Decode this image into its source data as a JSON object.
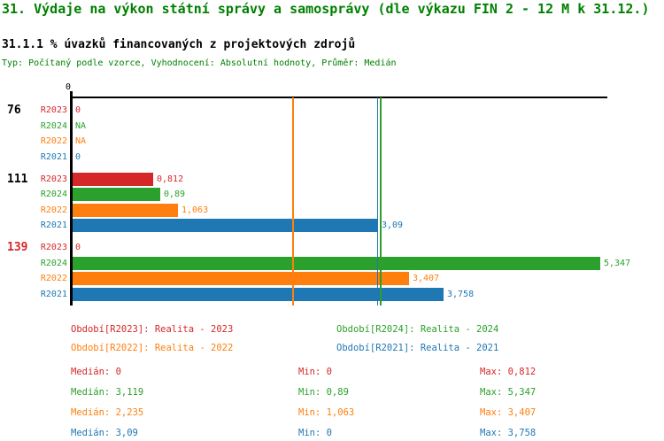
{
  "header": {
    "title": "31. Výdaje na výkon státní správy a samosprávy (dle výkazu FIN 2 - 12 M k 31.12.)",
    "subtitle": "31.1.1 % úvazků financovaných z projektových zdrojů",
    "type_line": "Typ: Počítaný podle vzorce, Vyhodnocení: Absolutní hodnoty, Průměr: Medián"
  },
  "colors": {
    "R2023": "#d62728",
    "R2024": "#2ca02c",
    "R2022": "#ff7f0e",
    "R2021": "#1f77b4",
    "title_green": "#008000",
    "group_label_black": "#000000",
    "group_label_red": "#d62728",
    "axis": "#000000"
  },
  "chart_data": {
    "type": "bar",
    "orientation": "horizontal",
    "title": "31.1.1 % úvazků financovaných z projektových zdrojů",
    "x_axis": {
      "tick_labels": [
        "0"
      ],
      "xmin": 0,
      "xmax": 5.43,
      "grid": false
    },
    "series_order": [
      "R2023",
      "R2024",
      "R2022",
      "R2021"
    ],
    "groups": [
      {
        "label": "76",
        "label_color": "#000000",
        "rows": [
          {
            "series": "R2023",
            "value": 0,
            "display": "0"
          },
          {
            "series": "R2024",
            "value": null,
            "display": "NA"
          },
          {
            "series": "R2022",
            "value": null,
            "display": "NA"
          },
          {
            "series": "R2021",
            "value": 0,
            "display": "0"
          }
        ]
      },
      {
        "label": "111",
        "label_color": "#000000",
        "rows": [
          {
            "series": "R2023",
            "value": 0.812,
            "display": "0,812"
          },
          {
            "series": "R2024",
            "value": 0.89,
            "display": "0,89"
          },
          {
            "series": "R2022",
            "value": 1.063,
            "display": "1,063"
          },
          {
            "series": "R2021",
            "value": 3.09,
            "display": "3,09"
          }
        ]
      },
      {
        "label": "139",
        "label_color": "#d62728",
        "rows": [
          {
            "series": "R2023",
            "value": 0,
            "display": "0"
          },
          {
            "series": "R2024",
            "value": 5.347,
            "display": "5,347"
          },
          {
            "series": "R2022",
            "value": 3.407,
            "display": "3,407"
          },
          {
            "series": "R2021",
            "value": 3.758,
            "display": "3,758"
          }
        ]
      }
    ],
    "median_lines": [
      {
        "series": "R2022",
        "value": 2.235
      },
      {
        "series": "R2021",
        "value": 3.09
      },
      {
        "series": "R2024",
        "value": 3.119
      }
    ]
  },
  "legend": [
    {
      "series": "R2023",
      "label": "Období[R2023]: Realita - 2023",
      "col": 0,
      "row": 0
    },
    {
      "series": "R2024",
      "label": "Období[R2024]: Realita - 2024",
      "col": 1,
      "row": 0
    },
    {
      "series": "R2022",
      "label": "Období[R2022]: Realita - 2022",
      "col": 0,
      "row": 1
    },
    {
      "series": "R2021",
      "label": "Období[R2021]: Realita - 2021",
      "col": 1,
      "row": 1
    }
  ],
  "stats_labels": {
    "median": "Medián",
    "min": "Min",
    "max": "Max"
  },
  "stats": [
    {
      "series": "R2023",
      "median": "0",
      "min": "0",
      "max": "0,812"
    },
    {
      "series": "R2024",
      "median": "3,119",
      "min": "0,89",
      "max": "5,347"
    },
    {
      "series": "R2022",
      "median": "2,235",
      "min": "1,063",
      "max": "3,407"
    },
    {
      "series": "R2021",
      "median": "3,09",
      "min": "0",
      "max": "3,758"
    }
  ]
}
